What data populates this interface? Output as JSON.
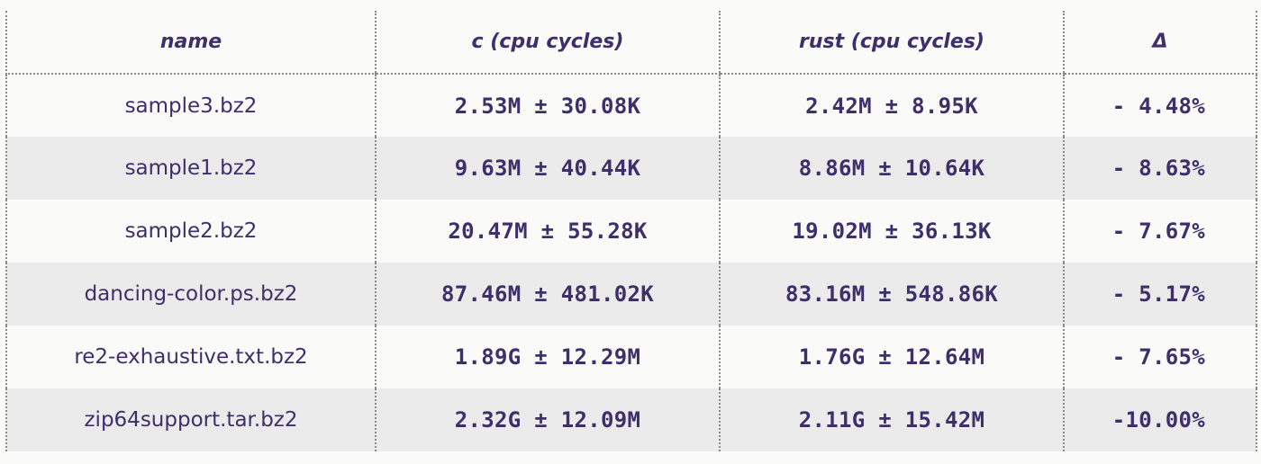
{
  "table": {
    "headers": {
      "name": "name",
      "c": "c (cpu cycles)",
      "rust": "rust (cpu cycles)",
      "delta": "Δ"
    },
    "rows": [
      {
        "name": "sample3.bz2",
        "c": "2.53M ± 30.08K",
        "rust": "2.42M ± 8.95K",
        "delta": "- 4.48%"
      },
      {
        "name": "sample1.bz2",
        "c": "9.63M ± 40.44K",
        "rust": "8.86M ± 10.64K",
        "delta": "- 8.63%"
      },
      {
        "name": "sample2.bz2",
        "c": "20.47M ± 55.28K",
        "rust": "19.02M ± 36.13K",
        "delta": "- 7.67%"
      },
      {
        "name": "dancing-color.ps.bz2",
        "c": "87.46M ± 481.02K",
        "rust": "83.16M ± 548.86K",
        "delta": "- 5.17%"
      },
      {
        "name": "re2-exhaustive.txt.bz2",
        "c": "1.89G ± 12.29M",
        "rust": "1.76G ± 12.64M",
        "delta": "- 7.65%"
      },
      {
        "name": "zip64support.tar.bz2",
        "c": "2.32G ± 12.09M",
        "rust": "2.11G ± 15.42M",
        "delta": "-10.00%"
      }
    ]
  },
  "colors": {
    "text": "#3e2f6b",
    "row_alt": "#ebebeb",
    "background": "#fafaf8",
    "grid": "#8a8a8a"
  }
}
